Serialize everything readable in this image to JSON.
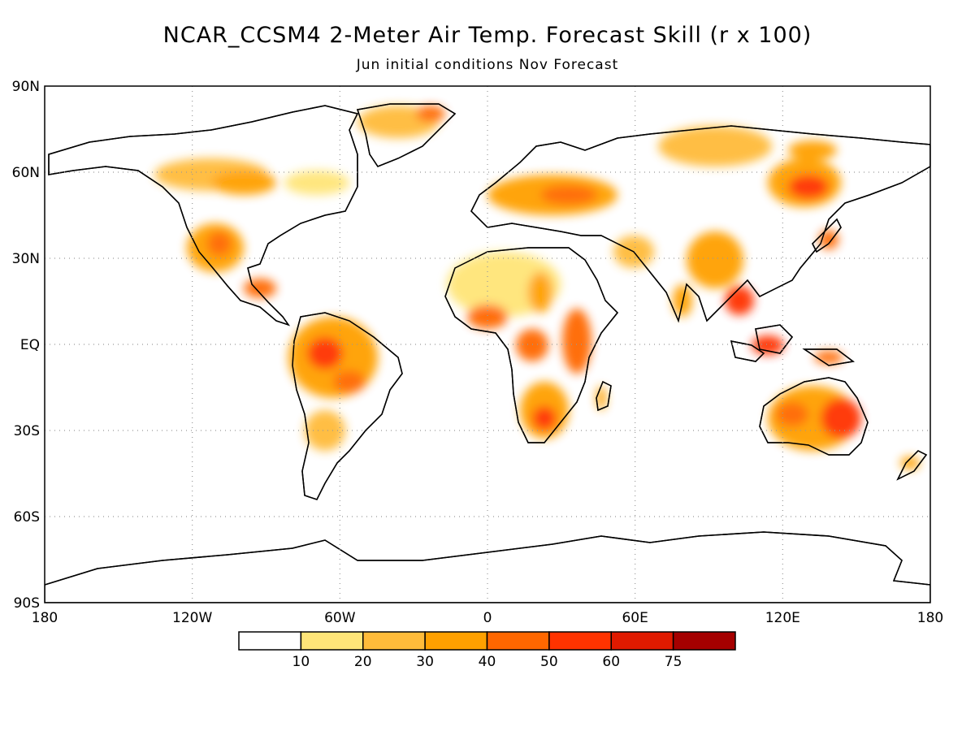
{
  "title": "NCAR_CCSM4 2-Meter Air Temp. Forecast Skill (r x 100)",
  "subtitle": "Jun initial conditions  Nov Forecast",
  "axes": {
    "lat_ticks": [
      "90N",
      "60N",
      "30N",
      "EQ",
      "30S",
      "60S",
      "90S"
    ],
    "lon_ticks": [
      "180",
      "120W",
      "60W",
      "0",
      "60E",
      "120E",
      "180"
    ]
  },
  "colorbar": {
    "labels": [
      "10",
      "20",
      "30",
      "40",
      "50",
      "60",
      "75"
    ],
    "colors": [
      "#ffffff",
      "#ffe578",
      "#ffbb3a",
      "#ffa000",
      "#ff6700",
      "#ff3300",
      "#e01a00",
      "#a50000"
    ]
  },
  "grid": "dotted"
}
